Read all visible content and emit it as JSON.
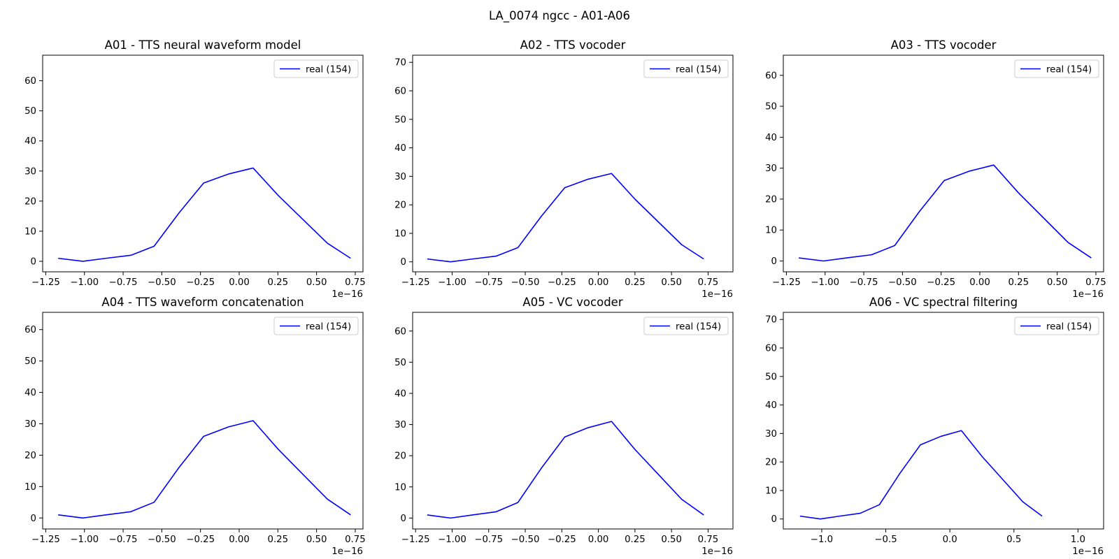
{
  "figure_title": "LA_0074 ngcc - A01-A06",
  "colors": {
    "line": "#0000ff",
    "axes": "#000000",
    "background": "#ffffff"
  },
  "chart_data": [
    {
      "type": "line",
      "title": "A01 - TTS neural waveform model",
      "xlabel": "",
      "ylabel": "",
      "x_offset_label": "1e−16",
      "x_unit_scale": 1e-16,
      "xlim": [
        -1.27,
        0.8
      ],
      "ylim": [
        -3.5,
        68.5
      ],
      "xticks": [
        -1.25,
        -1.0,
        -0.75,
        -0.5,
        -0.25,
        0.0,
        0.25,
        0.5,
        0.75
      ],
      "xtick_labels": [
        "−1.25",
        "−1.00",
        "−0.75",
        "−0.50",
        "−0.25",
        "0.00",
        "0.25",
        "0.50",
        "0.75"
      ],
      "yticks": [
        0,
        10,
        20,
        30,
        40,
        50,
        60
      ],
      "ytick_labels": [
        "0",
        "10",
        "20",
        "30",
        "40",
        "50",
        "60"
      ],
      "grid": false,
      "legend_position": "upper-right",
      "series": [
        {
          "name": "real (154)",
          "color": "#0000ff",
          "x": [
            -1.17,
            -1.01,
            -0.86,
            -0.7,
            -0.55,
            -0.39,
            -0.23,
            -0.07,
            0.09,
            0.25,
            0.41,
            0.57,
            0.72
          ],
          "y": [
            1,
            0,
            1,
            2,
            5,
            16,
            26,
            29,
            31,
            22,
            14,
            6,
            1
          ]
        }
      ]
    },
    {
      "type": "line",
      "title": "A02 - TTS vocoder",
      "xlabel": "",
      "ylabel": "",
      "x_offset_label": "1e−16",
      "x_unit_scale": 1e-16,
      "xlim": [
        -1.27,
        0.92
      ],
      "ylim": [
        -3.5,
        72.5
      ],
      "xticks": [
        -1.25,
        -1.0,
        -0.75,
        -0.5,
        -0.25,
        0.0,
        0.25,
        0.5,
        0.75
      ],
      "xtick_labels": [
        "−1.25",
        "−1.00",
        "−0.75",
        "−0.50",
        "−0.25",
        "0.00",
        "0.25",
        "0.50",
        "0.75"
      ],
      "yticks": [
        0,
        10,
        20,
        30,
        40,
        50,
        60,
        70
      ],
      "ytick_labels": [
        "0",
        "10",
        "20",
        "30",
        "40",
        "50",
        "60",
        "70"
      ],
      "grid": false,
      "legend_position": "upper-right",
      "series": [
        {
          "name": "real (154)",
          "color": "#0000ff",
          "x": [
            -1.17,
            -1.01,
            -0.86,
            -0.7,
            -0.55,
            -0.39,
            -0.23,
            -0.07,
            0.09,
            0.25,
            0.41,
            0.57,
            0.72
          ],
          "y": [
            1,
            0,
            1,
            2,
            5,
            16,
            26,
            29,
            31,
            22,
            14,
            6,
            1
          ]
        }
      ]
    },
    {
      "type": "line",
      "title": "A03 - TTS vocoder",
      "xlabel": "",
      "ylabel": "",
      "x_offset_label": "1e−16",
      "x_unit_scale": 1e-16,
      "xlim": [
        -1.27,
        0.8
      ],
      "ylim": [
        -3.5,
        66.5
      ],
      "xticks": [
        -1.25,
        -1.0,
        -0.75,
        -0.5,
        -0.25,
        0.0,
        0.25,
        0.5,
        0.75
      ],
      "xtick_labels": [
        "−1.25",
        "−1.00",
        "−0.75",
        "−0.50",
        "−0.25",
        "0.00",
        "0.25",
        "0.50",
        "0.75"
      ],
      "yticks": [
        0,
        10,
        20,
        30,
        40,
        50,
        60
      ],
      "ytick_labels": [
        "0",
        "10",
        "20",
        "30",
        "40",
        "50",
        "60"
      ],
      "grid": false,
      "legend_position": "upper-right",
      "series": [
        {
          "name": "real (154)",
          "color": "#0000ff",
          "x": [
            -1.17,
            -1.01,
            -0.86,
            -0.7,
            -0.55,
            -0.39,
            -0.23,
            -0.07,
            0.09,
            0.25,
            0.41,
            0.57,
            0.72
          ],
          "y": [
            1,
            0,
            1,
            2,
            5,
            16,
            26,
            29,
            31,
            22,
            14,
            6,
            1
          ]
        }
      ]
    },
    {
      "type": "line",
      "title": "A04 - TTS waveform concatenation",
      "xlabel": "",
      "ylabel": "",
      "x_offset_label": "1e−16",
      "x_unit_scale": 1e-16,
      "xlim": [
        -1.27,
        0.8
      ],
      "ylim": [
        -3.5,
        65.5
      ],
      "xticks": [
        -1.25,
        -1.0,
        -0.75,
        -0.5,
        -0.25,
        0.0,
        0.25,
        0.5,
        0.75
      ],
      "xtick_labels": [
        "−1.25",
        "−1.00",
        "−0.75",
        "−0.50",
        "−0.25",
        "0.00",
        "0.25",
        "0.50",
        "0.75"
      ],
      "yticks": [
        0,
        10,
        20,
        30,
        40,
        50,
        60
      ],
      "ytick_labels": [
        "0",
        "10",
        "20",
        "30",
        "40",
        "50",
        "60"
      ],
      "grid": false,
      "legend_position": "upper-right",
      "series": [
        {
          "name": "real (154)",
          "color": "#0000ff",
          "x": [
            -1.17,
            -1.01,
            -0.86,
            -0.7,
            -0.55,
            -0.39,
            -0.23,
            -0.07,
            0.09,
            0.25,
            0.41,
            0.57,
            0.72
          ],
          "y": [
            1,
            0,
            1,
            2,
            5,
            16,
            26,
            29,
            31,
            22,
            14,
            6,
            1
          ]
        }
      ]
    },
    {
      "type": "line",
      "title": "A05 - VC vocoder",
      "xlabel": "",
      "ylabel": "",
      "x_offset_label": "1e−16",
      "x_unit_scale": 1e-16,
      "xlim": [
        -1.27,
        0.92
      ],
      "ylim": [
        -3.5,
        66.0
      ],
      "xticks": [
        -1.25,
        -1.0,
        -0.75,
        -0.5,
        -0.25,
        0.0,
        0.25,
        0.5,
        0.75
      ],
      "xtick_labels": [
        "−1.25",
        "−1.00",
        "−0.75",
        "−0.50",
        "−0.25",
        "0.00",
        "0.25",
        "0.50",
        "0.75"
      ],
      "yticks": [
        0,
        10,
        20,
        30,
        40,
        50,
        60
      ],
      "ytick_labels": [
        "0",
        "10",
        "20",
        "30",
        "40",
        "50",
        "60"
      ],
      "grid": false,
      "legend_position": "upper-right",
      "series": [
        {
          "name": "real (154)",
          "color": "#0000ff",
          "x": [
            -1.17,
            -1.01,
            -0.86,
            -0.7,
            -0.55,
            -0.39,
            -0.23,
            -0.07,
            0.09,
            0.25,
            0.41,
            0.57,
            0.72
          ],
          "y": [
            1,
            0,
            1,
            2,
            5,
            16,
            26,
            29,
            31,
            22,
            14,
            6,
            1
          ]
        }
      ]
    },
    {
      "type": "line",
      "title": "A06 - VC spectral filtering",
      "xlabel": "",
      "ylabel": "",
      "x_offset_label": "1e−16",
      "x_unit_scale": 1e-16,
      "xlim": [
        -1.3,
        1.2
      ],
      "ylim": [
        -3.5,
        72.5
      ],
      "xticks": [
        -1.0,
        -0.5,
        0.0,
        0.5,
        1.0
      ],
      "xtick_labels": [
        "−1.0",
        "−0.5",
        "0.0",
        "0.5",
        "1.0"
      ],
      "yticks": [
        0,
        10,
        20,
        30,
        40,
        50,
        60,
        70
      ],
      "ytick_labels": [
        "0",
        "10",
        "20",
        "30",
        "40",
        "50",
        "60",
        "70"
      ],
      "grid": false,
      "legend_position": "upper-right",
      "series": [
        {
          "name": "real (154)",
          "color": "#0000ff",
          "x": [
            -1.17,
            -1.01,
            -0.86,
            -0.7,
            -0.55,
            -0.39,
            -0.23,
            -0.07,
            0.09,
            0.25,
            0.41,
            0.57,
            0.72
          ],
          "y": [
            1,
            0,
            1,
            2,
            5,
            16,
            26,
            29,
            31,
            22,
            14,
            6,
            1
          ]
        }
      ]
    }
  ]
}
